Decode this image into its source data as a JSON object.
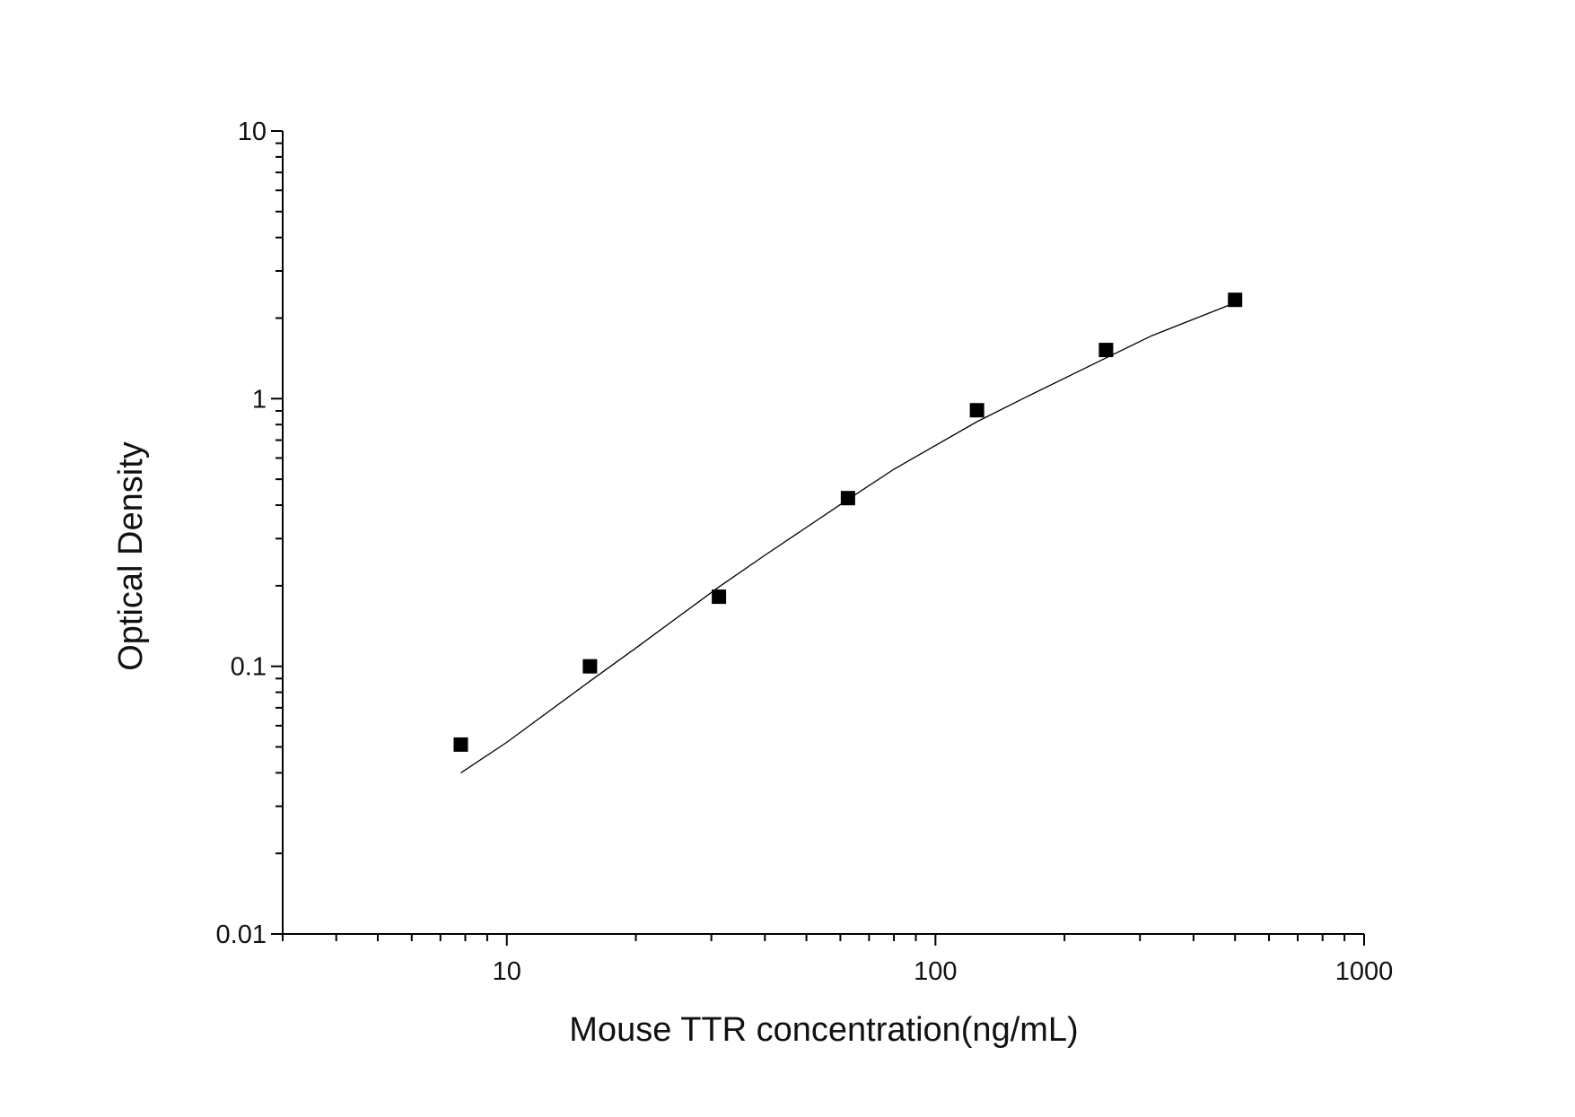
{
  "chart_data": {
    "type": "scatter",
    "title": "",
    "xlabel": "Mouse TTR concentration(ng/mL)",
    "ylabel": "Optical Density",
    "x_scale": "log",
    "y_scale": "log",
    "xlim": [
      3,
      1000
    ],
    "ylim": [
      0.01,
      10
    ],
    "x_ticks": [
      10,
      100,
      1000
    ],
    "x_tick_labels": [
      "10",
      "100",
      "1000"
    ],
    "y_ticks": [
      0.01,
      0.1,
      1,
      10
    ],
    "y_tick_labels": [
      "0.01",
      "0.1",
      "1",
      "10"
    ],
    "grid": false,
    "legend": "none",
    "marker": "square",
    "marker_color": "#000000",
    "line_color": "#000000",
    "series": [
      {
        "kind": "points",
        "x": [
          7.81,
          15.63,
          31.25,
          62.5,
          125,
          250,
          500
        ],
        "y": [
          0.051,
          0.1,
          0.182,
          0.425,
          0.905,
          1.52,
          2.34
        ]
      },
      {
        "kind": "fit-curve",
        "x": [
          7.81,
          10,
          15.63,
          20,
          31.25,
          40,
          62.5,
          80,
          125,
          160,
          250,
          320,
          500
        ],
        "y": [
          0.04,
          0.052,
          0.088,
          0.117,
          0.198,
          0.26,
          0.42,
          0.545,
          0.82,
          1.0,
          1.42,
          1.72,
          2.28
        ]
      }
    ]
  }
}
